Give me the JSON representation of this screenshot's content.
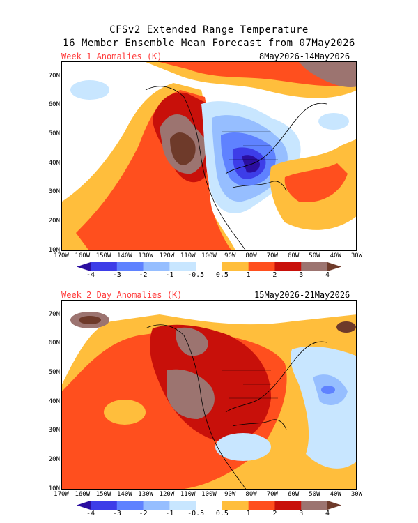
{
  "header": {
    "line1": "CFSv2 Extended Range Temperature",
    "line2": "16 Member Ensemble Mean Forecast from 07May2026"
  },
  "panels": [
    {
      "label": "Week 1 Anomalies (K)",
      "dates": "8May2026-14May2026"
    },
    {
      "label": "Week 2 Day Anomalies (K)",
      "dates": "15May2026-21May2026"
    }
  ],
  "axes": {
    "lat_labels": [
      "70N",
      "60N",
      "50N",
      "40N",
      "30N",
      "20N",
      "10N"
    ],
    "lon_labels": [
      "170W",
      "160W",
      "150W",
      "140W",
      "130W",
      "120W",
      "110W",
      "100W",
      "90W",
      "80W",
      "70W",
      "60W",
      "50W",
      "40W",
      "30W"
    ]
  },
  "colorbar": {
    "labels": [
      "-4",
      "-3",
      "-2",
      "-1",
      "-0.5",
      "0.5",
      "1",
      "2",
      "3",
      "4"
    ],
    "colors": [
      "#2b0ea0",
      "#3d3de8",
      "#5f82ff",
      "#96beff",
      "#c8e6ff",
      "#ffffff",
      "#ffbe3c",
      "#ff4f1e",
      "#c8100a",
      "#9c7470",
      "#6e3a2a"
    ]
  },
  "units": "K"
}
